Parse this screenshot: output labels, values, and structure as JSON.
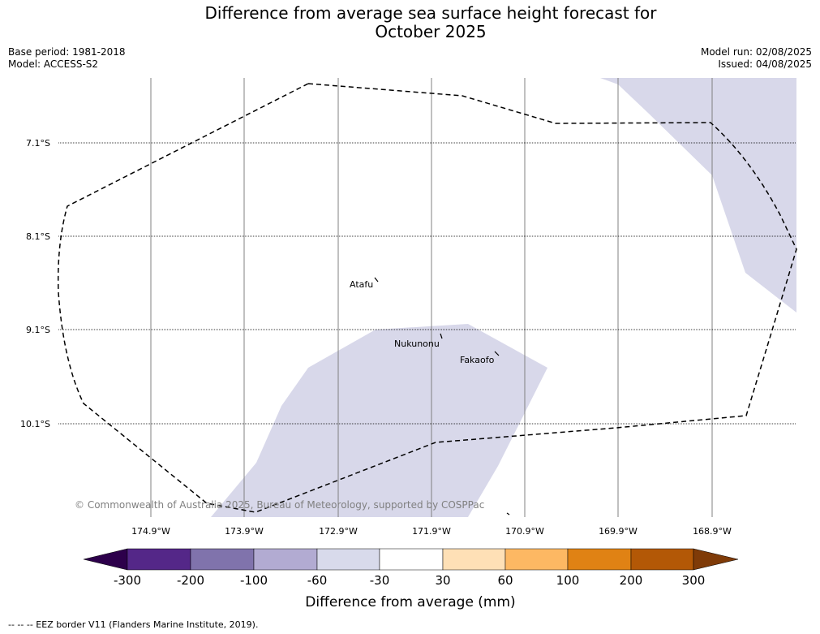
{
  "title": {
    "line1": "Difference from average sea surface height forecast for",
    "line2": "October 2025"
  },
  "meta": {
    "base_period": "Base period: 1981-2018",
    "model": "Model: ACCESS-S2",
    "model_run": "Model run: 02/08/2025",
    "issued": "Issued: 04/08/2025"
  },
  "map": {
    "lat_labels": [
      "7.1°S",
      "8.1°S",
      "9.1°S",
      "10.1°S"
    ],
    "lon_labels": [
      "174.9°W",
      "173.9°W",
      "172.9°W",
      "171.9°W",
      "170.9°W",
      "169.9°W",
      "168.9°W"
    ],
    "places": [
      "Atafu",
      "Nukunonu",
      "Fakaofo"
    ],
    "copyright": "© Commonwealth of Australia 2025, Bureau of Meteorology, supported by COSPPac",
    "colors": {
      "anomaly_fill": "#d8d8ea",
      "grid": "#808080"
    }
  },
  "colorbar": {
    "ticks": [
      "-300",
      "-200",
      "-100",
      "-60",
      "-30",
      "30",
      "60",
      "100",
      "200",
      "300"
    ],
    "colors": [
      "#2d004b",
      "#542788",
      "#8073ac",
      "#b2abd2",
      "#d8daeb",
      "#ffffff",
      "#fee0b6",
      "#fdb863",
      "#e08214",
      "#b35806",
      "#7f3b08"
    ],
    "label": "Difference from average (mm)"
  },
  "legend": {
    "eez": "--  --  -- EEZ border V11 (Flanders Marine Institute, 2019)."
  }
}
